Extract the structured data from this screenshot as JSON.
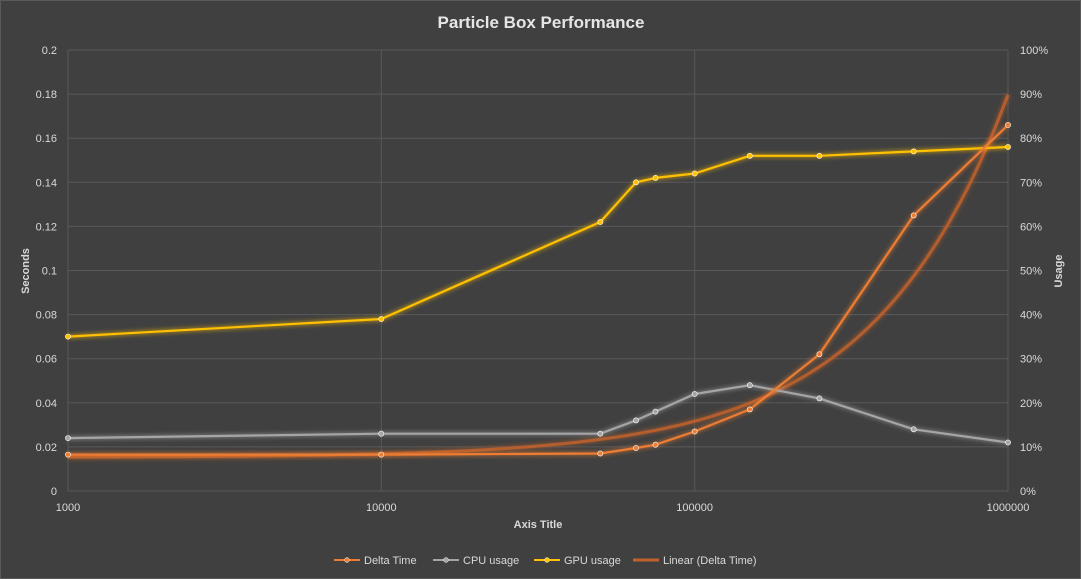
{
  "chart_data": {
    "type": "line",
    "title": "Particle Box Performance",
    "xlabel": "Axis Title",
    "ylabel": "Seconds",
    "y2label": "Usage",
    "xscale": "log",
    "xlim": [
      1000,
      1000000
    ],
    "ylim": [
      0,
      0.2
    ],
    "y2lim": [
      0,
      100
    ],
    "x_ticks": [
      "1000",
      "10000",
      "100000",
      "1000000"
    ],
    "y_ticks": [
      "0",
      "0.02",
      "0.04",
      "0.06",
      "0.08",
      "0.1",
      "0.12",
      "0.14",
      "0.16",
      "0.18",
      "0.2"
    ],
    "y2_ticks": [
      "0%",
      "10%",
      "20%",
      "30%",
      "40%",
      "50%",
      "60%",
      "70%",
      "80%",
      "90%",
      "100%"
    ],
    "grid": true,
    "legend_position": "bottom",
    "series": [
      {
        "name": "Delta Time",
        "axis": "left",
        "color": "#ed7d31",
        "x": [
          1000,
          10000,
          50000,
          65000,
          75000,
          100000,
          150000,
          250000,
          500000,
          1000000
        ],
        "values": [
          0.0165,
          0.0165,
          0.017,
          0.0195,
          0.021,
          0.027,
          0.037,
          0.062,
          0.125,
          0.166
        ]
      },
      {
        "name": "CPU usage",
        "axis": "right",
        "color": "#a5a5a5",
        "x": [
          1000,
          10000,
          50000,
          65000,
          75000,
          100000,
          150000,
          250000,
          500000,
          1000000
        ],
        "values": [
          12,
          13,
          13,
          16,
          18,
          22,
          24,
          21,
          14,
          11
        ]
      },
      {
        "name": "GPU usage",
        "axis": "right",
        "color": "#ffc000",
        "x": [
          1000,
          10000,
          50000,
          65000,
          75000,
          100000,
          150000,
          250000,
          500000,
          1000000
        ],
        "values": [
          35,
          39,
          61,
          70,
          71,
          72,
          76,
          76,
          77,
          78
        ]
      },
      {
        "name": "Linear (Delta Time)",
        "axis": "left",
        "color": "#c0622b",
        "trendline": true,
        "equation": {
          "intercept": 0.0152,
          "slope": 1.645e-07
        }
      }
    ]
  }
}
